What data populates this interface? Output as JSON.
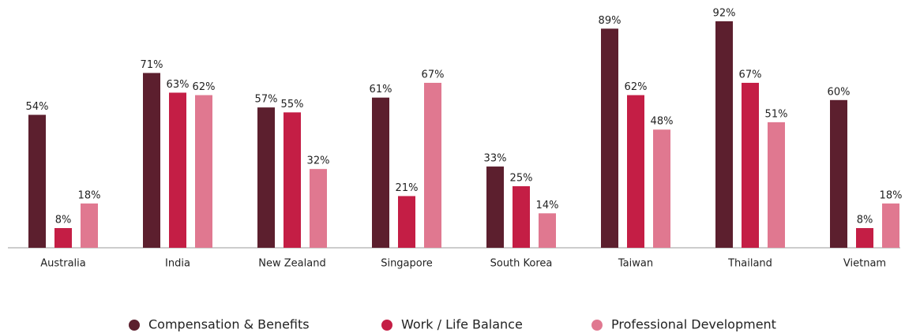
{
  "chart_data": {
    "type": "bar",
    "categories": [
      "Australia",
      "India",
      "New Zealand",
      "Singapore",
      "South Korea",
      "Taiwan",
      "Thailand",
      "Vietnam"
    ],
    "series": [
      {
        "name": "Compensation & Benefits",
        "color": "#5c1f2e",
        "values": [
          54,
          71,
          57,
          61,
          33,
          89,
          92,
          60
        ],
        "value_labels": [
          "54%",
          "71%",
          "57%",
          "61%",
          "33%",
          "89%",
          "92%",
          "60%"
        ]
      },
      {
        "name": "Work / Life Balance",
        "color": "#c41e45",
        "values": [
          8,
          63,
          55,
          21,
          25,
          62,
          67,
          8
        ],
        "value_labels": [
          "8%",
          "63%",
          "55%",
          "21%",
          "25%",
          "62%",
          "67%",
          "8%"
        ]
      },
      {
        "name": "Professional Development",
        "color": "#e07890",
        "values": [
          18,
          62,
          32,
          67,
          14,
          48,
          51,
          18
        ],
        "value_labels": [
          "18%",
          "62%",
          "32%",
          "67%",
          "14%",
          "48%",
          "51%",
          "18%"
        ]
      }
    ]
  }
}
